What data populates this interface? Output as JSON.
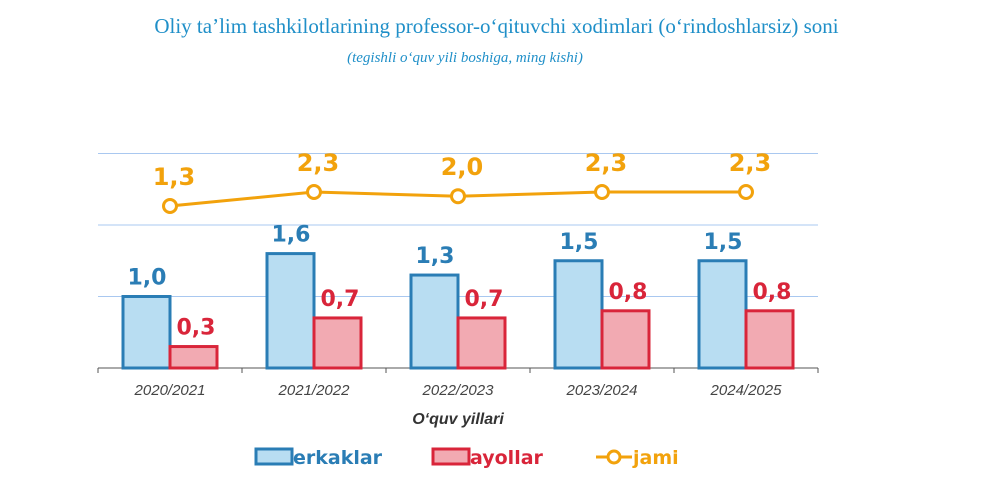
{
  "chart_data": {
    "type": "bar",
    "title": "Oliy ta’lim tashkilotlarining professor-o‘qituvchi xodimlari (o‘rindoshlarsiz) soni",
    "subtitle": "(tegishli o‘quv yili boshiga, ming kishi)",
    "xlabel": "O‘quv yillari",
    "ylabel": "",
    "ylim": [
      0,
      3
    ],
    "grid": true,
    "legend_position": "bottom",
    "categories": [
      "2020/2021",
      "2021/2022",
      "2022/2023",
      "2023/2024",
      "2024/2025"
    ],
    "series": [
      {
        "name": "erkaklar",
        "type": "bar",
        "color": "#2a7db5",
        "fill": "#b8ddf2",
        "values": [
          1.0,
          1.6,
          1.3,
          1.5,
          1.5
        ],
        "labels": [
          "1,0",
          "1,6",
          "1,3",
          "1,5",
          "1,5"
        ]
      },
      {
        "name": "ayollar",
        "type": "bar",
        "color": "#d9253a",
        "fill": "#f2aab2",
        "values": [
          0.3,
          0.7,
          0.7,
          0.8,
          0.8
        ],
        "labels": [
          "0,3",
          "0,7",
          "0,7",
          "0,8",
          "0,8"
        ]
      },
      {
        "name": "jami",
        "type": "line",
        "color": "#f2a20c",
        "values": [
          1.3,
          2.3,
          2.0,
          2.3,
          2.3
        ],
        "labels": [
          "1,3",
          "2,3",
          "2,0",
          "2,3",
          "2,3"
        ]
      }
    ]
  }
}
